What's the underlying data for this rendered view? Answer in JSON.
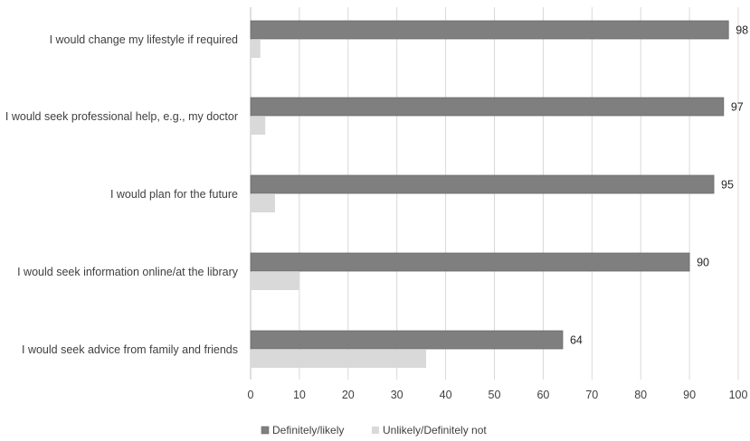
{
  "chart_data": {
    "type": "bar",
    "orientation": "horizontal",
    "categories": [
      "I would change my lifestyle if required",
      "I would seek professional help, e.g., my doctor",
      "I would plan for the future",
      "I would seek information online/at the library",
      "I would seek advice from family and friends"
    ],
    "series": [
      {
        "name": "Definitely/likely",
        "values": [
          98,
          97,
          95,
          90,
          64
        ],
        "color": "#7f7f7f",
        "data_labels": true
      },
      {
        "name": "Unlikely/Definitely not",
        "values": [
          2,
          3,
          5,
          10,
          36
        ],
        "color": "#d9d9d9",
        "data_labels": false
      }
    ],
    "xlim": [
      0,
      100
    ],
    "xticks": [
      0,
      10,
      20,
      30,
      40,
      50,
      60,
      70,
      80,
      90,
      100
    ],
    "grid": true,
    "legend_position": "bottom",
    "title": "",
    "xlabel": "",
    "ylabel": ""
  }
}
